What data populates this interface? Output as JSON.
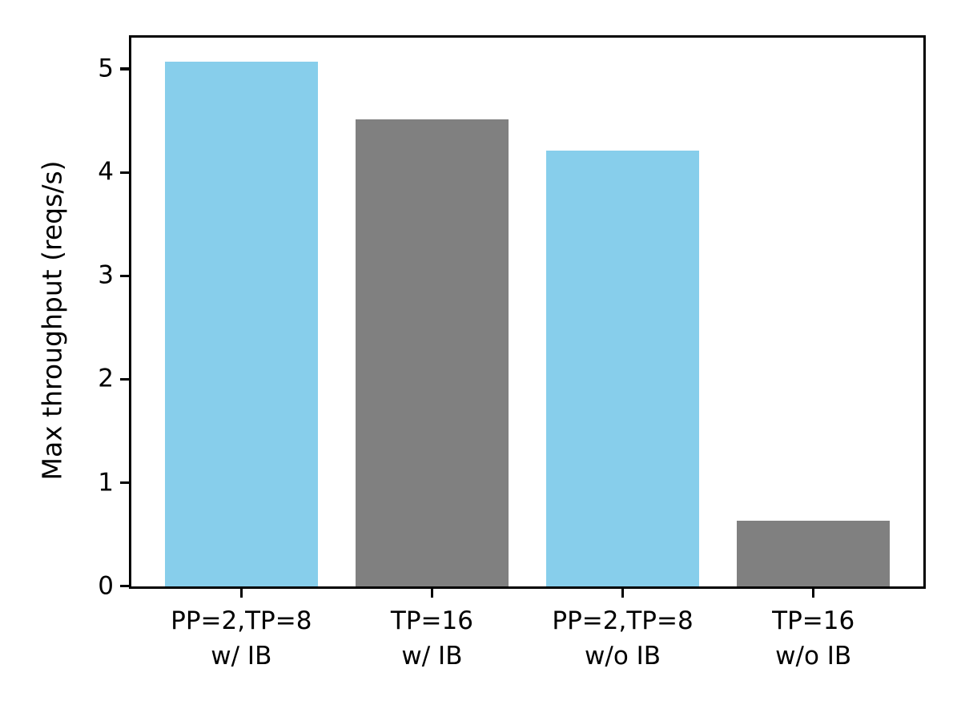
{
  "chart_data": {
    "type": "bar",
    "title": "",
    "xlabel": "",
    "ylabel": "Max throughput (reqs/s)",
    "categories": [
      "PP=2,TP=8\nw/ IB",
      "TP=16\nw/ IB",
      "PP=2,TP=8\nw/o IB",
      "TP=16\nw/o IB"
    ],
    "values": [
      5.07,
      4.51,
      4.21,
      0.63
    ],
    "bar_colors": [
      "#87CEEB",
      "#808080",
      "#87CEEB",
      "#808080"
    ],
    "yticks": [
      0,
      1,
      2,
      3,
      4,
      5
    ],
    "ylim": [
      0,
      5.3
    ],
    "xlim": [
      -0.575,
      3.575
    ],
    "bar_width_fraction": 0.8,
    "grid": false,
    "legend": "none",
    "spine_color": "#000000",
    "background_color": "#ffffff"
  }
}
